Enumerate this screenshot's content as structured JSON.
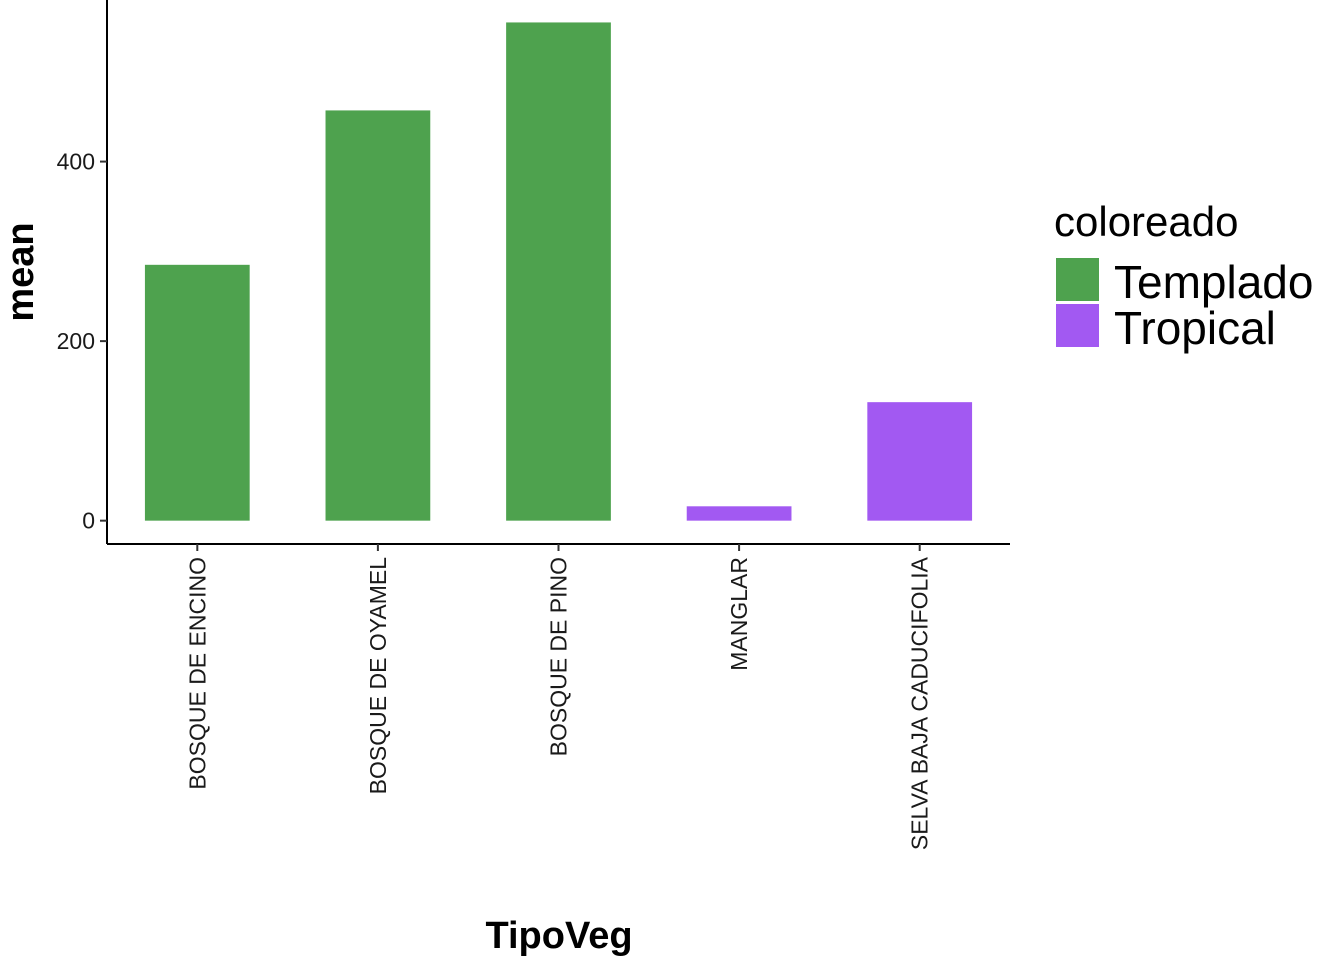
{
  "chart_data": {
    "type": "bar",
    "xlabel": "TipoVeg",
    "ylabel": "mean",
    "categories": [
      "BOSQUE DE ENCINO",
      "BOSQUE DE OYAMEL",
      "BOSQUE DE PINO",
      "MANGLAR",
      "SELVA BAJA CADUCIFOLIA"
    ],
    "values": [
      285,
      457,
      555,
      16,
      132
    ],
    "groups": [
      "Templado",
      "Templado",
      "Templado",
      "Tropical",
      "Tropical"
    ],
    "y_ticks": [
      0,
      200,
      400
    ],
    "ylim": [
      -26,
      580
    ],
    "grid": false,
    "legend": {
      "title": "coloreado",
      "position": "right",
      "entries": [
        {
          "label": "Templado",
          "color": "#4ea24e"
        },
        {
          "label": "Tropical",
          "color": "#a259f2"
        }
      ]
    }
  }
}
